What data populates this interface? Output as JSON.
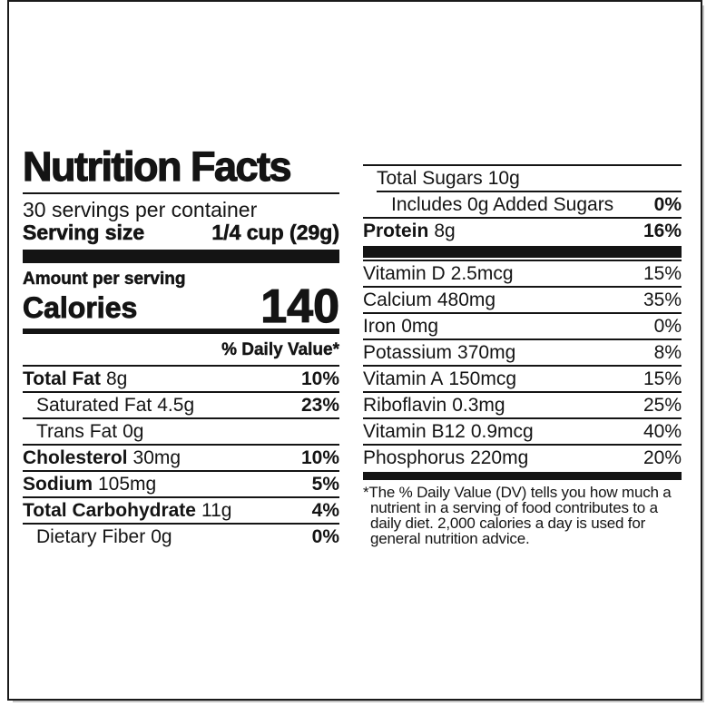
{
  "label": {
    "title": "Nutrition Facts",
    "servings_per_container": "30 servings per container",
    "serving_size_label": "Serving size",
    "serving_size_value": "1/4 cup (29g)",
    "amount_per_serving": "Amount per serving",
    "calories_label": "Calories",
    "calories_value": "140",
    "daily_value_header": "% Daily Value*",
    "left_rows": [
      {
        "name": "Total Fat",
        "amount": "8g",
        "dv": "10%"
      },
      {
        "name": "Saturated Fat",
        "amount": "4.5g",
        "dv": "23%"
      },
      {
        "name": "Trans Fat",
        "amount": "0g",
        "dv": ""
      },
      {
        "name": "Cholesterol",
        "amount": "30mg",
        "dv": "10%"
      },
      {
        "name": "Sodium",
        "amount": "105mg",
        "dv": "5%"
      },
      {
        "name": "Total Carbohydrate",
        "amount": "11g",
        "dv": "4%"
      },
      {
        "name": "Dietary Fiber",
        "amount": "0g",
        "dv": "0%"
      }
    ],
    "right_rows": [
      {
        "name": "Total Sugars",
        "amount": "10g",
        "dv": ""
      },
      {
        "name": "Includes 0g Added Sugars",
        "amount": "",
        "dv": "0%"
      },
      {
        "name": "Protein",
        "amount": "8g",
        "dv": "16%"
      }
    ],
    "vitamins": [
      {
        "name": "Vitamin D",
        "amount": "2.5mcg",
        "dv": "15%"
      },
      {
        "name": "Calcium",
        "amount": "480mg",
        "dv": "35%"
      },
      {
        "name": "Iron",
        "amount": "0mg",
        "dv": "0%"
      },
      {
        "name": "Potassium",
        "amount": "370mg",
        "dv": "8%"
      },
      {
        "name": "Vitamin A",
        "amount": "150mcg",
        "dv": "15%"
      },
      {
        "name": "Riboflavin",
        "amount": "0.3mg",
        "dv": "25%"
      },
      {
        "name": "Vitamin B12",
        "amount": "0.9mcg",
        "dv": "40%"
      },
      {
        "name": "Phosphorus",
        "amount": "220mg",
        "dv": "20%"
      }
    ],
    "footnote": "*The % Daily Value (DV) tells you how much a nutrient in a serving of food contributes to a daily diet. 2,000 calories a day is used for general nutrition advice."
  },
  "colors": {
    "text": "#141414",
    "rules": "#141414",
    "background": "#ffffff",
    "frame_border": "#1a1a1a"
  }
}
